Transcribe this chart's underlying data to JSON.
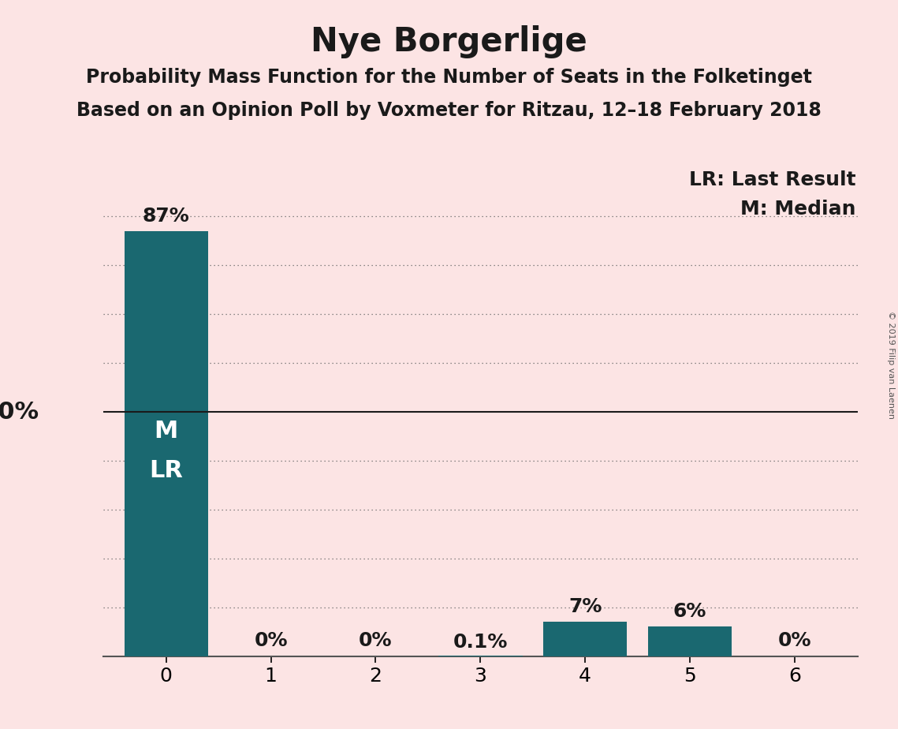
{
  "title": "Nye Borgerlige",
  "subtitle1": "Probability Mass Function for the Number of Seats in the Folketinget",
  "subtitle2": "Based on an Opinion Poll by Voxmeter for Ritzau, 12–18 February 2018",
  "copyright": "© 2019 Filip van Laenen",
  "categories": [
    0,
    1,
    2,
    3,
    4,
    5,
    6
  ],
  "values": [
    0.87,
    0.0,
    0.0,
    0.001,
    0.07,
    0.06,
    0.0
  ],
  "bar_labels": [
    "87%",
    "0%",
    "0%",
    "0.1%",
    "7%",
    "6%",
    "0%"
  ],
  "bar_color": "#1a6870",
  "background_color": "#fce4e4",
  "fifty_pct_line": 0.5,
  "dotted_lines": [
    0.1,
    0.2,
    0.3,
    0.4,
    0.6,
    0.7,
    0.8,
    0.9
  ],
  "ylim_max": 1.0,
  "legend_lr": "LR: Last Result",
  "legend_m": "M: Median",
  "title_fontsize": 30,
  "subtitle_fontsize": 17,
  "tick_fontsize": 18,
  "label_fontsize": 18,
  "legend_fontsize": 18,
  "fifty_label_fontsize": 22,
  "ml_fontsize": 22,
  "copyright_fontsize": 8
}
